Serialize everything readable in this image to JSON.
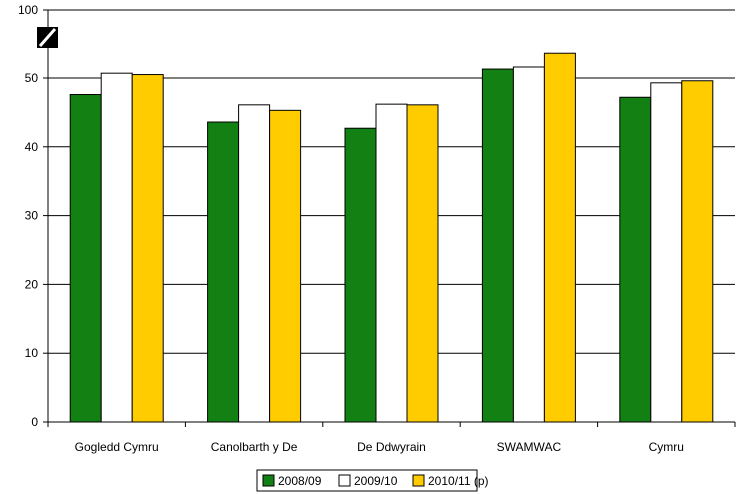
{
  "colors": {
    "series_2008": "#138013",
    "series_2009": "#ffffff",
    "series_2010": "#ffcc00",
    "outline": "#000000",
    "grid": "#000000"
  },
  "chart_data": {
    "type": "bar",
    "categories": [
      "Gogledd Cymru",
      "Canolbarth y De",
      "De Ddwyrain",
      "SWAMWAC",
      "Cymru"
    ],
    "series": [
      {
        "name": "2008/09",
        "values": [
          47.6,
          43.6,
          42.7,
          51.3,
          47.2
        ]
      },
      {
        "name": "2009/10",
        "values": [
          50.7,
          46.1,
          46.2,
          51.6,
          49.3
        ]
      },
      {
        "name": "2010/11 (p)",
        "values": [
          50.5,
          45.3,
          46.1,
          53.6,
          49.6
        ]
      }
    ],
    "ylim": [
      0,
      100
    ],
    "yticks": [
      "0",
      "10",
      "20",
      "30",
      "40",
      "50",
      "100"
    ],
    "axis_break": true,
    "grid": true,
    "legend_position": "bottom",
    "title": "",
    "xlabel": "",
    "ylabel": ""
  }
}
